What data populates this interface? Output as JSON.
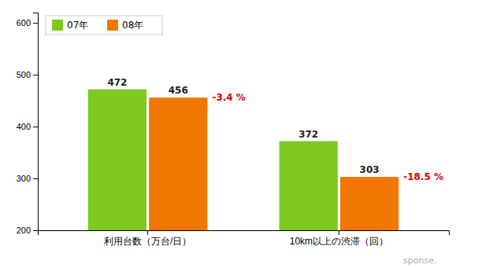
{
  "chart_data": {
    "type": "bar",
    "categories": [
      "利用台数（万台/日）",
      "10km以上の渋滞（回）"
    ],
    "series": [
      {
        "name": "07年",
        "color": "#7ec820",
        "values": [
          472,
          372
        ]
      },
      {
        "name": "08年",
        "color": "#f07800",
        "values": [
          456,
          303
        ]
      }
    ],
    "ylim": [
      200,
      620
    ],
    "yticks": [
      200,
      300,
      400,
      500,
      600
    ],
    "data_labels": true,
    "legend": "top-left",
    "grid": false,
    "annotations": [
      {
        "text": "-3.4 %",
        "color": "#dd0000"
      },
      {
        "text": "-18.5 %",
        "color": "#dd0000"
      }
    ],
    "watermark": "sponse."
  }
}
